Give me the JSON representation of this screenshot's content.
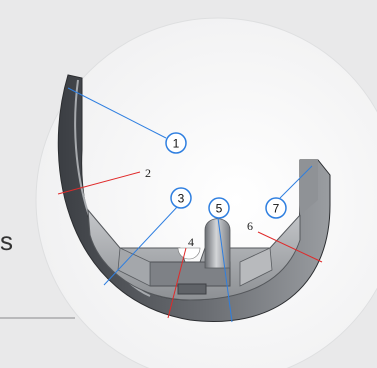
{
  "side_text": "s",
  "colors": {
    "blue_line": "#2f7fe0",
    "red_line": "#e02a2a",
    "circle_fill": "#ffffff",
    "part_dark": "#4a4d52"
  },
  "callouts": [
    {
      "id": "callout-1",
      "label": "1",
      "style": "circled",
      "line": "blue"
    },
    {
      "id": "callout-2",
      "label": "2",
      "style": "plain",
      "line": "red"
    },
    {
      "id": "callout-3",
      "label": "3",
      "style": "circled",
      "line": "blue"
    },
    {
      "id": "callout-4",
      "label": "4",
      "style": "plain",
      "line": "red"
    },
    {
      "id": "callout-5",
      "label": "5",
      "style": "circled",
      "line": "blue"
    },
    {
      "id": "callout-6",
      "label": "6",
      "style": "plain",
      "line": "red"
    },
    {
      "id": "callout-7",
      "label": "7",
      "style": "circled",
      "line": "blue"
    }
  ]
}
